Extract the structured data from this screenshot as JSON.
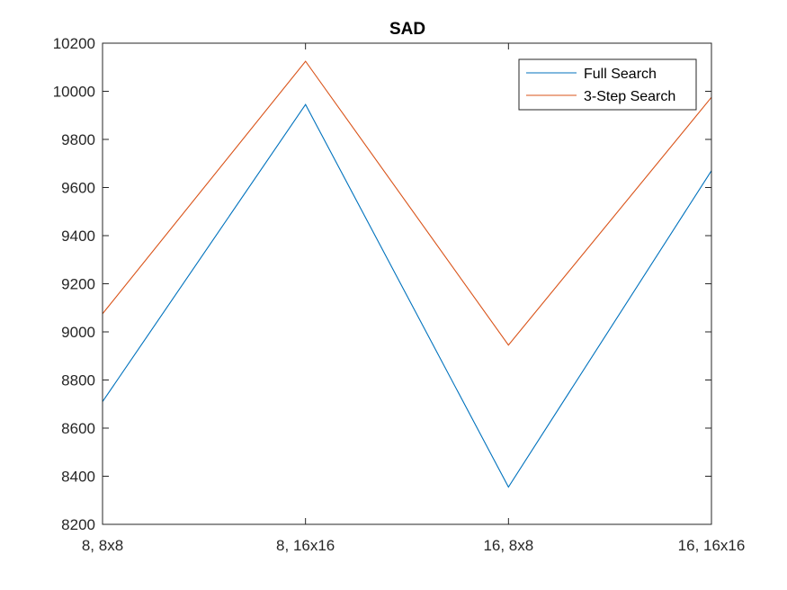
{
  "chart_data": {
    "type": "line",
    "title": "SAD",
    "xlabel": "",
    "ylabel": "",
    "categories": [
      "8, 8x8",
      "8, 16x16",
      "16, 8x8",
      "16, 16x16"
    ],
    "ylim": [
      8200,
      10200
    ],
    "yticks": [
      8200,
      8400,
      8600,
      8800,
      9000,
      9200,
      9400,
      9600,
      9800,
      10000,
      10200
    ],
    "grid": false,
    "legend_position": "top-right",
    "series": [
      {
        "name": "Full Search",
        "color": "#0072BD",
        "values": [
          8710,
          9945,
          8355,
          9670
        ]
      },
      {
        "name": "3-Step Search",
        "color": "#D95319",
        "values": [
          9075,
          10125,
          8945,
          9975
        ]
      }
    ]
  }
}
